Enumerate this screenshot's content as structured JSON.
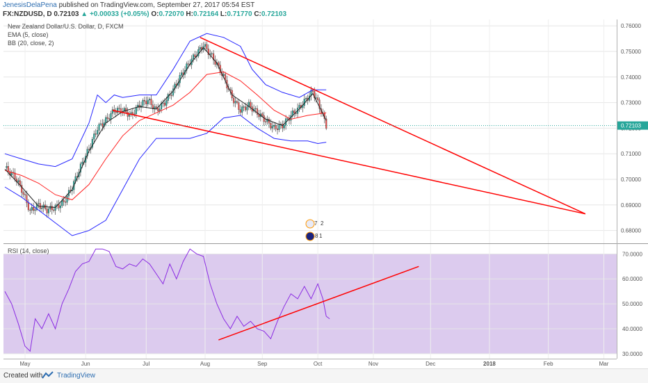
{
  "header": {
    "author": "JenesisDelaPena",
    "published": "published on TradingView.com, September 27, 2017 05:54 EST",
    "symbol": "FX:NZDUSD, D",
    "close_value": "0.72103",
    "change": "+0.00033 (+0.05%)",
    "o_label": "O:",
    "o_value": "0.72070",
    "h_label": "H:",
    "h_value": "0.72164",
    "l_label": "L:",
    "l_value": "0.71770",
    "c_label": "C:",
    "c_value": "0.72103"
  },
  "legend": {
    "title": "New Zealand Dollar/U.S. Dollar, D, FXCM",
    "ema": "EMA (5, close)",
    "bb": "BB (20, close, 2)",
    "rsi": "RSI (14, close)"
  },
  "footer": {
    "created_with": "Created with",
    "brand": "TradingView"
  },
  "markers": {
    "m1": "7",
    "m2": "2",
    "m3": "8",
    "m4": "1"
  },
  "colors": {
    "candle_up": "#26a69a",
    "candle_down": "#ef5350",
    "bb": "#2323ff",
    "ema_mid": "#ff2020",
    "rsi_line": "#8a2be2",
    "trend": "#ff0000",
    "rsi_band": "#d9c6ec"
  },
  "chart_data": [
    {
      "type": "candlestick",
      "title": "New Zealand Dollar/U.S. Dollar, D, FXCM",
      "y_ticks": [
        "0.76000",
        "0.75000",
        "0.74000",
        "0.73000",
        "0.72000",
        "0.71000",
        "0.70000",
        "0.69000",
        "0.68000"
      ],
      "y_tick_values": [
        0.76,
        0.75,
        0.74,
        0.73,
        0.72,
        0.71,
        0.7,
        0.69,
        0.68
      ],
      "ylim": [
        0.675,
        0.7625
      ],
      "x_ticks": [
        "May",
        "Jun",
        "Jul",
        "Aug",
        "Sep",
        "Oct",
        "Nov",
        "Dec",
        "2018",
        "Feb",
        "Mar"
      ],
      "last_price_label": "0.72103",
      "series": [
        {
          "name": "close",
          "points": [
            [
              0,
              0.7045
            ],
            [
              6,
              0.701
            ],
            [
              10,
              0.696
            ],
            [
              15,
              0.6875
            ],
            [
              20,
              0.69
            ],
            [
              25,
              0.688
            ],
            [
              30,
              0.689
            ],
            [
              35,
              0.691
            ],
            [
              40,
              0.697
            ],
            [
              45,
              0.705
            ],
            [
              50,
              0.712
            ],
            [
              55,
              0.72
            ],
            [
              60,
              0.723
            ],
            [
              65,
              0.727
            ],
            [
              70,
              0.727
            ],
            [
              75,
              0.725
            ],
            [
              80,
              0.729
            ],
            [
              85,
              0.731
            ],
            [
              90,
              0.727
            ],
            [
              95,
              0.73
            ],
            [
              100,
              0.735
            ],
            [
              105,
              0.741
            ],
            [
              110,
              0.746
            ],
            [
              115,
              0.75
            ],
            [
              118,
              0.7525
            ],
            [
              122,
              0.749
            ],
            [
              126,
              0.745
            ],
            [
              130,
              0.74
            ],
            [
              135,
              0.732
            ],
            [
              140,
              0.727
            ],
            [
              145,
              0.729
            ],
            [
              150,
              0.726
            ],
            [
              155,
              0.723
            ],
            [
              160,
              0.72
            ],
            [
              165,
              0.721
            ],
            [
              170,
              0.725
            ],
            [
              175,
              0.728
            ],
            [
              180,
              0.732
            ],
            [
              183,
              0.7345
            ],
            [
              186,
              0.73
            ],
            [
              189,
              0.725
            ],
            [
              191,
              0.721
            ]
          ]
        },
        {
          "name": "EMA (5, close)",
          "points": [
            [
              0,
              0.704
            ],
            [
              10,
              0.697
            ],
            [
              20,
              0.6895
            ],
            [
              30,
              0.689
            ],
            [
              40,
              0.696
            ],
            [
              50,
              0.711
            ],
            [
              60,
              0.722
            ],
            [
              70,
              0.7265
            ],
            [
              80,
              0.7285
            ],
            [
              90,
              0.7275
            ],
            [
              100,
              0.7345
            ],
            [
              110,
              0.745
            ],
            [
              118,
              0.7515
            ],
            [
              126,
              0.7455
            ],
            [
              135,
              0.733
            ],
            [
              145,
              0.7285
            ],
            [
              155,
              0.7235
            ],
            [
              165,
              0.721
            ],
            [
              175,
              0.7275
            ],
            [
              183,
              0.7335
            ],
            [
              191,
              0.723
            ]
          ]
        },
        {
          "name": "BB basis",
          "points": [
            [
              0,
              0.7035
            ],
            [
              10,
              0.7015
            ],
            [
              20,
              0.6985
            ],
            [
              30,
              0.694
            ],
            [
              40,
              0.692
            ],
            [
              50,
              0.698
            ],
            [
              60,
              0.708
            ],
            [
              70,
              0.717
            ],
            [
              80,
              0.723
            ],
            [
              90,
              0.726
            ],
            [
              100,
              0.729
            ],
            [
              110,
              0.734
            ],
            [
              120,
              0.741
            ],
            [
              130,
              0.742
            ],
            [
              140,
              0.7385
            ],
            [
              150,
              0.733
            ],
            [
              160,
              0.727
            ],
            [
              170,
              0.7235
            ],
            [
              180,
              0.725
            ],
            [
              191,
              0.726
            ]
          ]
        },
        {
          "name": "BB upper",
          "points": [
            [
              0,
              0.71
            ],
            [
              10,
              0.708
            ],
            [
              20,
              0.706
            ],
            [
              30,
              0.705
            ],
            [
              40,
              0.708
            ],
            [
              50,
              0.722
            ],
            [
              55,
              0.733
            ],
            [
              60,
              0.73
            ],
            [
              65,
              0.733
            ],
            [
              70,
              0.732
            ],
            [
              80,
              0.733
            ],
            [
              90,
              0.733
            ],
            [
              100,
              0.743
            ],
            [
              110,
              0.754
            ],
            [
              120,
              0.757
            ],
            [
              130,
              0.7555
            ],
            [
              140,
              0.752
            ],
            [
              147,
              0.743
            ],
            [
              155,
              0.737
            ],
            [
              165,
              0.734
            ],
            [
              175,
              0.732
            ],
            [
              183,
              0.735
            ],
            [
              191,
              0.735
            ]
          ]
        },
        {
          "name": "BB lower",
          "points": [
            [
              0,
              0.697
            ],
            [
              10,
              0.693
            ],
            [
              20,
              0.688
            ],
            [
              30,
              0.683
            ],
            [
              40,
              0.678
            ],
            [
              50,
              0.68
            ],
            [
              60,
              0.684
            ],
            [
              70,
              0.696
            ],
            [
              80,
              0.708
            ],
            [
              90,
              0.716
            ],
            [
              100,
              0.716
            ],
            [
              110,
              0.716
            ],
            [
              120,
              0.718
            ],
            [
              130,
              0.724
            ],
            [
              140,
              0.725
            ],
            [
              150,
              0.72
            ],
            [
              160,
              0.716
            ],
            [
              170,
              0.715
            ],
            [
              180,
              0.715
            ],
            [
              186,
              0.714
            ],
            [
              191,
              0.7145
            ]
          ]
        }
      ],
      "trendlines": [
        {
          "from": [
            116,
            0.7555
          ],
          "to": [
            345,
            0.6865
          ]
        },
        {
          "from": [
            64,
            0.727
          ],
          "to": [
            345,
            0.6865
          ]
        }
      ]
    },
    {
      "type": "line",
      "title": "RSI (14, close)",
      "y_ticks": [
        "70.0000",
        "60.0000",
        "50.0000",
        "40.0000",
        "30.0000"
      ],
      "y_tick_values": [
        70,
        60,
        50,
        40,
        30
      ],
      "ylim": [
        28,
        74
      ],
      "band": [
        30,
        70
      ],
      "series": [
        {
          "name": "RSI (14, close)",
          "points": [
            [
              0,
              55
            ],
            [
              4,
              50
            ],
            [
              8,
              42
            ],
            [
              12,
              33
            ],
            [
              15,
              31
            ],
            [
              18,
              44
            ],
            [
              22,
              40
            ],
            [
              26,
              46
            ],
            [
              30,
              40
            ],
            [
              34,
              50
            ],
            [
              38,
              56
            ],
            [
              42,
              63
            ],
            [
              46,
              66
            ],
            [
              50,
              67
            ],
            [
              54,
              72
            ],
            [
              58,
              72
            ],
            [
              62,
              71
            ],
            [
              66,
              65
            ],
            [
              70,
              64
            ],
            [
              74,
              66
            ],
            [
              78,
              65
            ],
            [
              82,
              68
            ],
            [
              86,
              66
            ],
            [
              90,
              62
            ],
            [
              94,
              58
            ],
            [
              98,
              66
            ],
            [
              102,
              60
            ],
            [
              106,
              67
            ],
            [
              110,
              72
            ],
            [
              114,
              70
            ],
            [
              118,
              69
            ],
            [
              122,
              58
            ],
            [
              126,
              50
            ],
            [
              130,
              44
            ],
            [
              134,
              40
            ],
            [
              138,
              45
            ],
            [
              142,
              41
            ],
            [
              146,
              43
            ],
            [
              150,
              40
            ],
            [
              154,
              39
            ],
            [
              158,
              36
            ],
            [
              162,
              43
            ],
            [
              166,
              49
            ],
            [
              170,
              54
            ],
            [
              174,
              52
            ],
            [
              178,
              57
            ],
            [
              182,
              52
            ],
            [
              186,
              58
            ],
            [
              189,
              52
            ],
            [
              191,
              45
            ],
            [
              193,
              44
            ]
          ]
        }
      ],
      "trendlines": [
        {
          "from": [
            127,
            35.5
          ],
          "to": [
            246,
            65
          ]
        }
      ]
    }
  ]
}
